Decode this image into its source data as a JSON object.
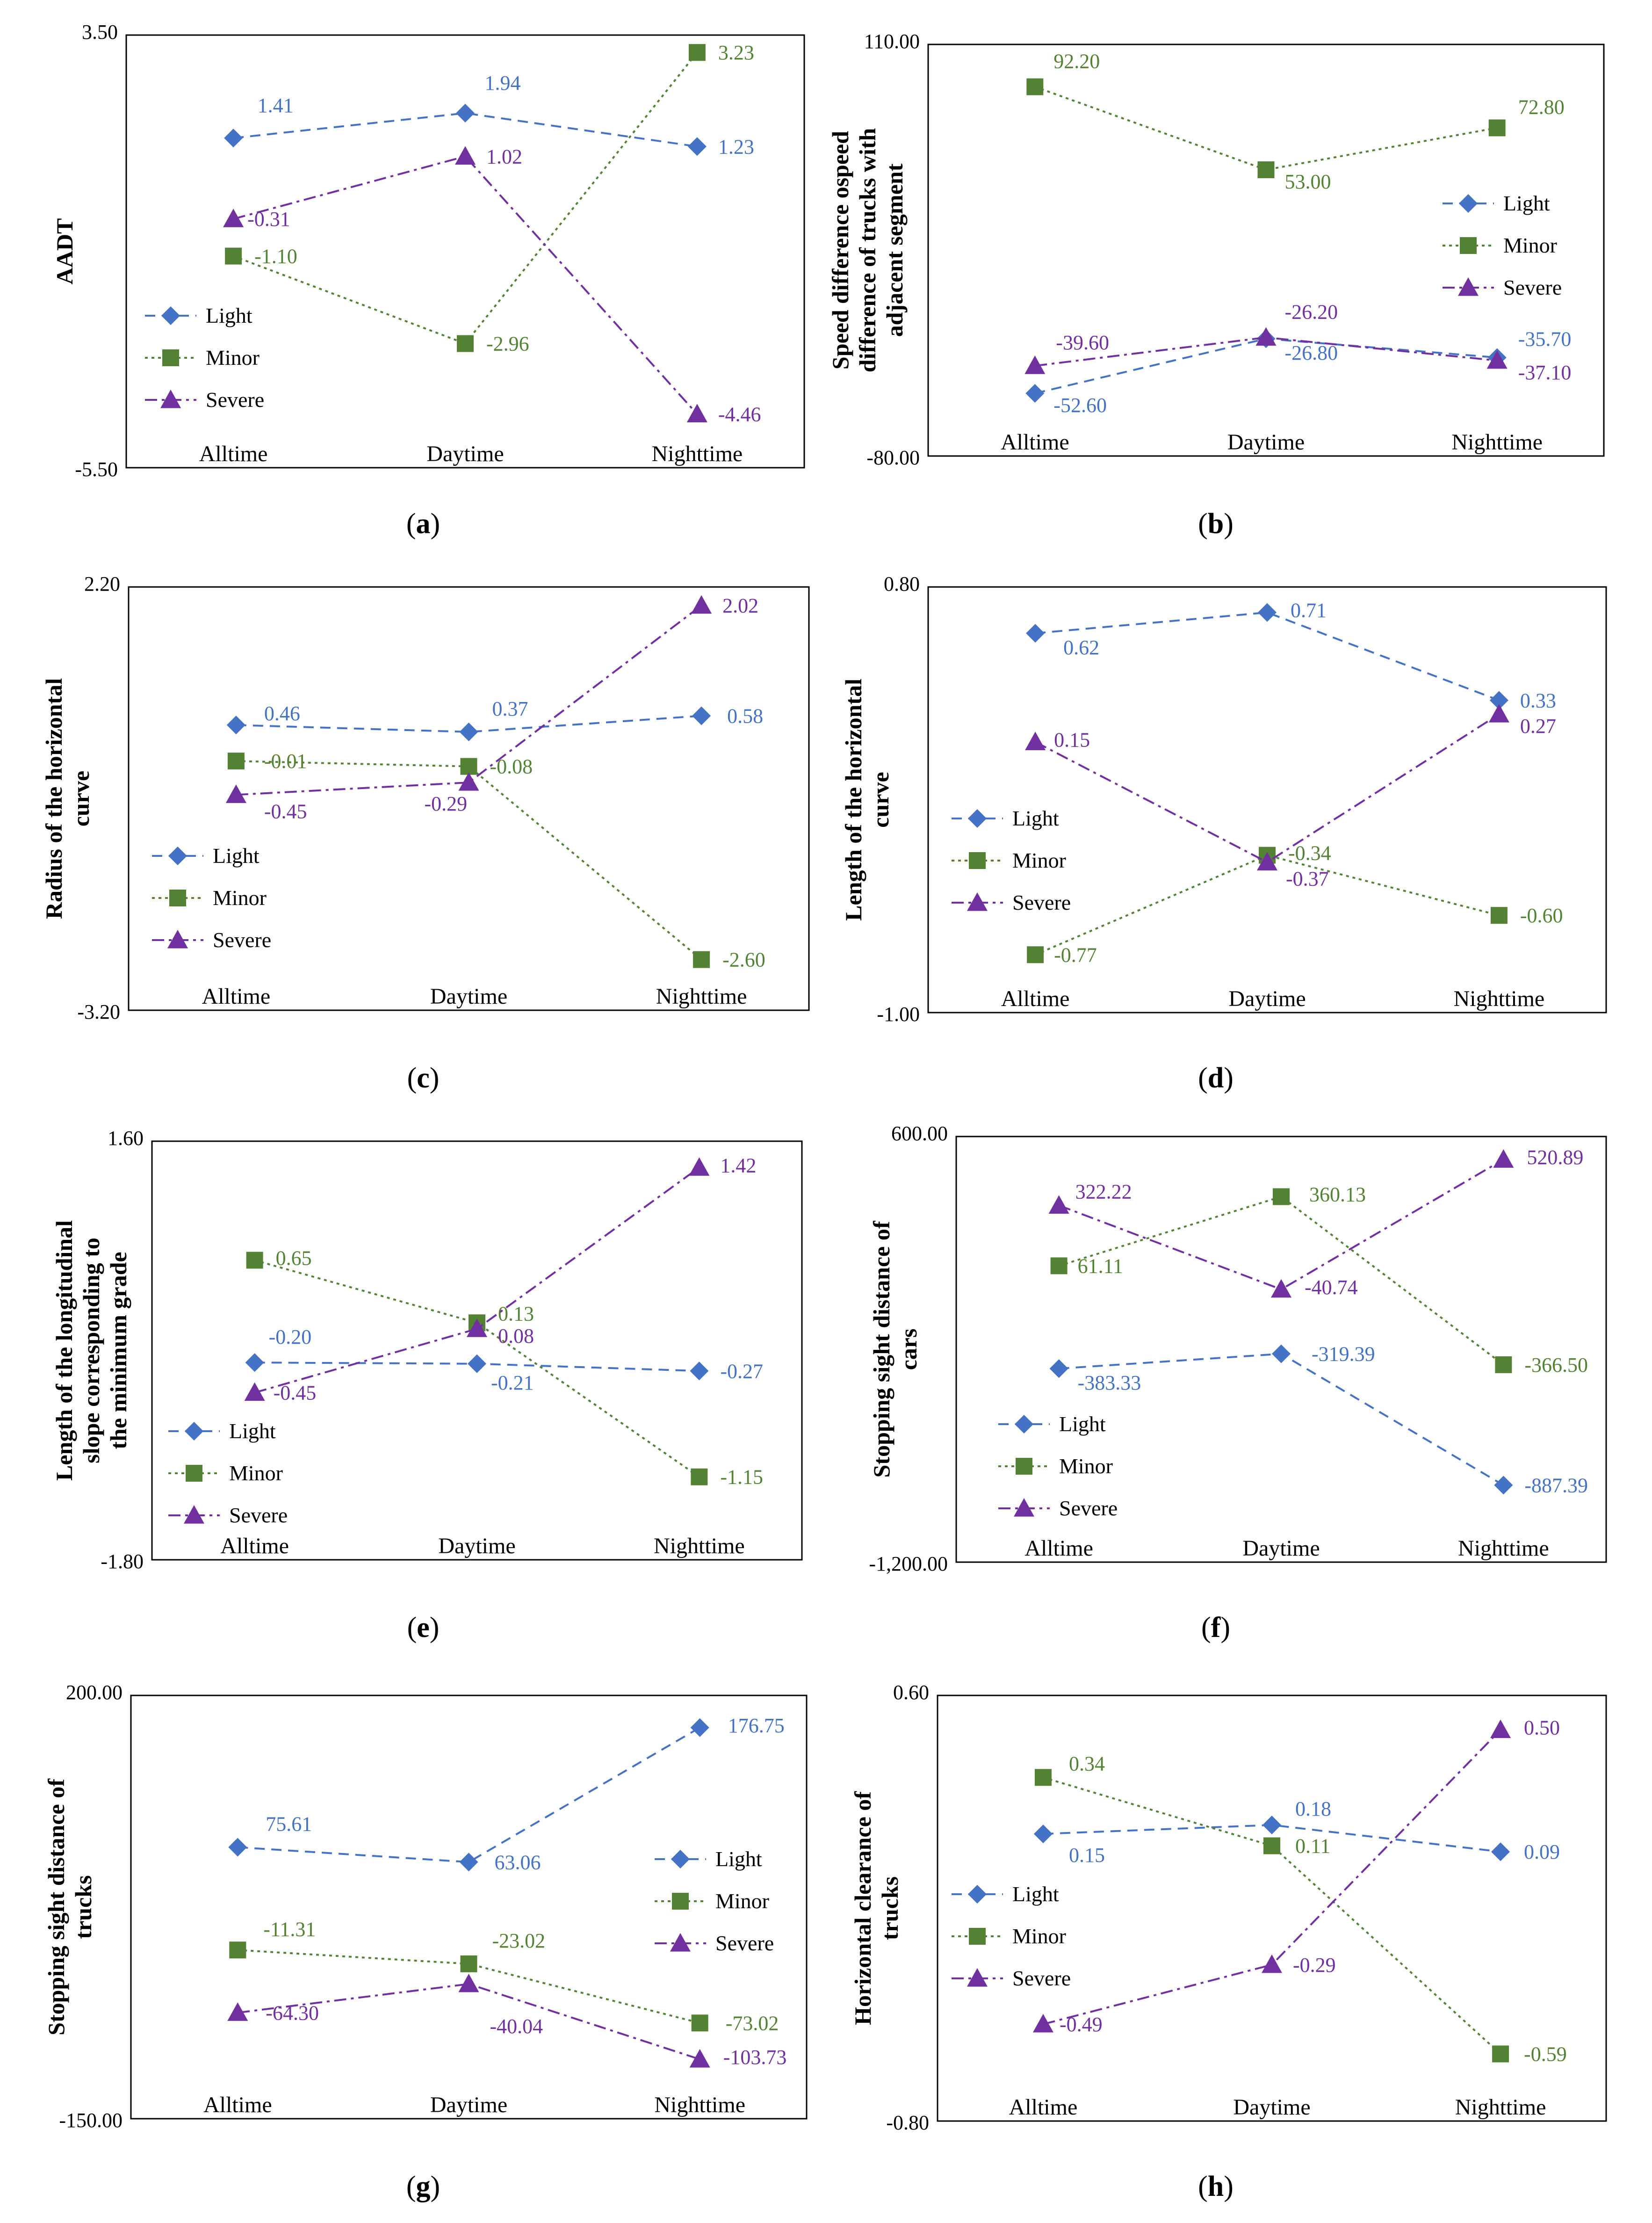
{
  "figure": {
    "series_names": [
      "Light",
      "Minor",
      "Severe"
    ],
    "categories": [
      "Alltime",
      "Daytime",
      "Nighttime"
    ],
    "colors": {
      "Light": "#4472C4",
      "Minor": "#548235",
      "Severe": "#7030A0"
    }
  },
  "chart_data": [
    {
      "id": "a",
      "type": "line",
      "caption_label": "a",
      "ylabel": [
        "AADT"
      ],
      "ylim": [
        -5.5,
        3.5
      ],
      "ylim_labels": [
        "3.50",
        "-5.50"
      ],
      "categories": [
        "Alltime",
        "Daytime",
        "Nighttime"
      ],
      "legend": "center-left",
      "series": [
        {
          "name": "Light",
          "values": [
            1.41,
            1.94,
            1.23
          ],
          "labels": [
            "1.41",
            "1.94",
            "1.23"
          ]
        },
        {
          "name": "Minor",
          "values": [
            -1.1,
            -2.96,
            3.23
          ],
          "labels": [
            "-1.10",
            "-2.96",
            "3.23"
          ]
        },
        {
          "name": "Severe",
          "values": [
            -0.31,
            1.02,
            -4.46
          ],
          "labels": [
            "-0.31",
            "1.02",
            "-4.46"
          ]
        }
      ]
    },
    {
      "id": "b",
      "type": "line",
      "caption_label": "b",
      "ylabel": [
        "Speed difference ospeed",
        "difference of trucks with",
        "adjacent segment"
      ],
      "ylim": [
        -80,
        110
      ],
      "ylim_labels": [
        "110.00",
        "-80.00"
      ],
      "categories": [
        "Alltime",
        "Daytime",
        "Nighttime"
      ],
      "legend": "center-right",
      "series": [
        {
          "name": "Light",
          "values": [
            -52.6,
            -26.8,
            -35.7
          ],
          "labels": [
            "-52.60",
            "-26.80",
            "-35.70"
          ]
        },
        {
          "name": "Minor",
          "values": [
            92.2,
            53.0,
            72.8
          ],
          "labels": [
            "92.20",
            "53.00",
            "72.80"
          ]
        },
        {
          "name": "Severe",
          "values": [
            -39.6,
            -26.2,
            -37.1
          ],
          "labels": [
            "-39.60",
            "-26.20",
            "-37.10"
          ]
        }
      ]
    },
    {
      "id": "c",
      "type": "line",
      "caption_label": "c",
      "ylabel": [
        "Radius of the horizontal",
        "curve"
      ],
      "ylim": [
        -3.2,
        2.2
      ],
      "ylim_labels": [
        "2.20",
        "-3.20"
      ],
      "categories": [
        "Alltime",
        "Daytime",
        "Nighttime"
      ],
      "legend": "center-left",
      "series": [
        {
          "name": "Light",
          "values": [
            0.46,
            0.37,
            0.58
          ],
          "labels": [
            "0.46",
            "0.37",
            "0.58"
          ]
        },
        {
          "name": "Minor",
          "values": [
            -0.01,
            -0.08,
            -2.6
          ],
          "labels": [
            "-0.01",
            "-0.08",
            "-2.60"
          ]
        },
        {
          "name": "Severe",
          "values": [
            -0.45,
            -0.29,
            2.02
          ],
          "labels": [
            "-0.45",
            "-0.29",
            "2.02"
          ]
        }
      ]
    },
    {
      "id": "d",
      "type": "line",
      "caption_label": "d",
      "ylabel": [
        "Length of the horizontal",
        "curve"
      ],
      "ylim": [
        -1.0,
        0.8
      ],
      "ylim_labels": [
        "0.80",
        "-1.00"
      ],
      "categories": [
        "Alltime",
        "Daytime",
        "Nighttime"
      ],
      "legend": "center-left",
      "series": [
        {
          "name": "Light",
          "values": [
            0.62,
            0.71,
            0.33
          ],
          "labels": [
            "0.62",
            "0.71",
            "0.33"
          ]
        },
        {
          "name": "Minor",
          "values": [
            -0.77,
            -0.34,
            -0.6
          ],
          "labels": [
            "-0.77",
            "-0.34",
            "-0.60"
          ]
        },
        {
          "name": "Severe",
          "values": [
            0.15,
            -0.37,
            0.27
          ],
          "labels": [
            "0.15",
            "-0.37",
            "0.27"
          ]
        }
      ]
    },
    {
      "id": "e",
      "type": "line",
      "caption_label": "e",
      "ylabel": [
        "Length of the longitudinal",
        "slope corresponding to",
        "the minimum grade"
      ],
      "ylim": [
        -1.8,
        1.6
      ],
      "ylim_labels": [
        "1.60",
        "-1.80"
      ],
      "categories": [
        "Alltime",
        "Daytime",
        "Nighttime"
      ],
      "legend": "bottom-left",
      "series": [
        {
          "name": "Light",
          "values": [
            -0.2,
            -0.21,
            -0.27
          ],
          "labels": [
            "-0.20",
            "-0.21",
            "-0.27"
          ]
        },
        {
          "name": "Minor",
          "values": [
            0.65,
            0.13,
            -1.15
          ],
          "labels": [
            "0.65",
            "0.13",
            "-1.15"
          ]
        },
        {
          "name": "Severe",
          "values": [
            -0.45,
            0.08,
            1.42
          ],
          "labels": [
            "-0.45",
            "0.08",
            "1.42"
          ]
        }
      ]
    },
    {
      "id": "f",
      "type": "line",
      "caption_label": "f",
      "ylabel": [
        "Stopping sight distance of",
        "cars"
      ],
      "ylim": [
        -1200,
        600
      ],
      "ylim_labels": [
        "600.00",
        "-1,200.00"
      ],
      "categories": [
        "Alltime",
        "Daytime",
        "Nighttime"
      ],
      "legend": "bottom-left",
      "series": [
        {
          "name": "Light",
          "values": [
            -383.33,
            -319.39,
            -887.39
          ],
          "labels": [
            "-383.33",
            "-319.39",
            "-887.39"
          ]
        },
        {
          "name": "Minor",
          "values": [
            61.11,
            360.13,
            -366.5
          ],
          "labels": [
            "61.11",
            "360.13",
            "-366.50"
          ]
        },
        {
          "name": "Severe",
          "values": [
            322.22,
            -40.74,
            520.89
          ],
          "labels": [
            "322.22",
            "-40.74",
            "520.89"
          ]
        }
      ]
    },
    {
      "id": "g",
      "type": "line",
      "caption_label": "g",
      "ylabel": [
        "Stopping sight distance of",
        "trucks"
      ],
      "ylim": [
        -150,
        200
      ],
      "ylim_labels": [
        "200.00",
        "-150.00"
      ],
      "categories": [
        "Alltime",
        "Daytime",
        "Nighttime"
      ],
      "legend": "center-right",
      "series": [
        {
          "name": "Light",
          "values": [
            75.61,
            63.06,
            176.75
          ],
          "labels": [
            "75.61",
            "63.06",
            "176.75"
          ]
        },
        {
          "name": "Minor",
          "values": [
            -11.31,
            -23.02,
            -73.02
          ],
          "labels": [
            "-11.31",
            "-23.02",
            "-73.02"
          ]
        },
        {
          "name": "Severe",
          "values": [
            -64.3,
            -40.04,
            -103.73
          ],
          "labels": [
            "-64.30",
            "-40.04",
            "-103.73"
          ]
        }
      ]
    },
    {
      "id": "h",
      "type": "line",
      "caption_label": "h",
      "ylabel": [
        "Horizontal clearance of",
        "trucks"
      ],
      "ylim": [
        -0.8,
        0.6
      ],
      "ylim_labels": [
        "0.60",
        "-0.80"
      ],
      "categories": [
        "Alltime",
        "Daytime",
        "Nighttime"
      ],
      "legend": "center-left",
      "series": [
        {
          "name": "Light",
          "values": [
            0.15,
            0.18,
            0.09
          ],
          "labels": [
            "0.15",
            "0.18",
            "0.09"
          ]
        },
        {
          "name": "Minor",
          "values": [
            0.34,
            0.11,
            -0.59
          ],
          "labels": [
            "0.34",
            "0.11",
            "-0.59"
          ]
        },
        {
          "name": "Severe",
          "values": [
            -0.49,
            -0.29,
            0.5
          ],
          "labels": [
            "-0.49",
            "-0.29",
            "0.50"
          ]
        }
      ]
    }
  ]
}
